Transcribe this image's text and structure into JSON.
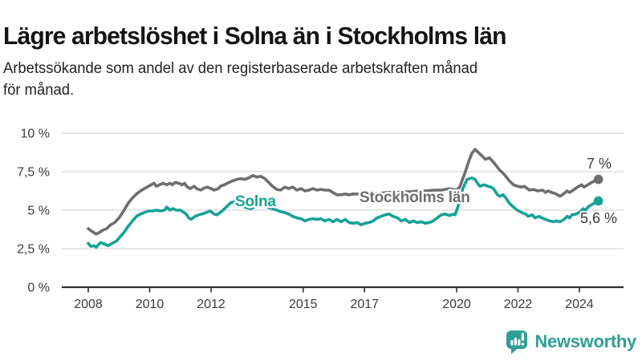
{
  "header": {
    "title": "Lägre arbetslöshet i Solna än i Stockholms län",
    "subtitle": "Arbetssökande som andel av den registerbaserade arbetskraften månad\nför månad."
  },
  "footer": {
    "brand": "Newsworthy"
  },
  "colors": {
    "solna_teal": "#16a296",
    "stockholm_gray": "#6e6e6e",
    "tick_text": "#3c3c3c",
    "grid": "#d9d9d9",
    "axis": "#2e2e2e",
    "brand_teal": "#2f9f97",
    "title_text": "#141414"
  },
  "chart_data": {
    "type": "line",
    "title": "Lägre arbetslöshet i Solna än i Stockholms län",
    "subtitle": "Arbetssökande som andel av den registerbaserade arbetskraften månad för månad.",
    "xlabel": "",
    "ylabel": "",
    "ylim": [
      0,
      10
    ],
    "xlim": [
      2007.3,
      2025.4
    ],
    "grid": "horizontal",
    "legend_position": "inline-labels",
    "y_ticks": [
      {
        "value": 10,
        "label": "10 %"
      },
      {
        "value": 7.5,
        "label": "7,5 %"
      },
      {
        "value": 5,
        "label": "5 %"
      },
      {
        "value": 2.5,
        "label": "2,5 %"
      },
      {
        "value": 0,
        "label": "0 %"
      }
    ],
    "x_ticks": [
      {
        "value": 2008,
        "label": "2008"
      },
      {
        "value": 2010,
        "label": "2010"
      },
      {
        "value": 2012,
        "label": "2012"
      },
      {
        "value": 2015,
        "label": "2015"
      },
      {
        "value": 2017,
        "label": "2017"
      },
      {
        "value": 2020,
        "label": "2020"
      },
      {
        "value": 2022,
        "label": "2022"
      },
      {
        "value": 2024,
        "label": "2024"
      }
    ],
    "series": [
      {
        "name": "Stockholms län",
        "color": "#6e6e6e",
        "end_label": "7 %",
        "end_value": 7.0,
        "points": [
          [
            2008.0,
            3.8
          ],
          [
            2008.1,
            3.65
          ],
          [
            2008.26,
            3.45
          ],
          [
            2008.4,
            3.6
          ],
          [
            2008.47,
            3.7
          ],
          [
            2008.6,
            3.8
          ],
          [
            2008.73,
            4.05
          ],
          [
            2008.86,
            4.2
          ],
          [
            2009.0,
            4.5
          ],
          [
            2009.12,
            4.85
          ],
          [
            2009.3,
            5.45
          ],
          [
            2009.44,
            5.8
          ],
          [
            2009.57,
            6.05
          ],
          [
            2009.7,
            6.25
          ],
          [
            2009.83,
            6.4
          ],
          [
            2009.96,
            6.55
          ],
          [
            2010.14,
            6.75
          ],
          [
            2010.22,
            6.55
          ],
          [
            2010.43,
            6.75
          ],
          [
            2010.56,
            6.65
          ],
          [
            2010.66,
            6.75
          ],
          [
            2010.75,
            6.65
          ],
          [
            2010.82,
            6.8
          ],
          [
            2010.95,
            6.75
          ],
          [
            2011.06,
            6.65
          ],
          [
            2011.14,
            6.75
          ],
          [
            2011.2,
            6.55
          ],
          [
            2011.32,
            6.4
          ],
          [
            2011.45,
            6.55
          ],
          [
            2011.53,
            6.4
          ],
          [
            2011.66,
            6.3
          ],
          [
            2011.74,
            6.4
          ],
          [
            2011.87,
            6.5
          ],
          [
            2012.0,
            6.4
          ],
          [
            2012.1,
            6.3
          ],
          [
            2012.24,
            6.4
          ],
          [
            2012.3,
            6.55
          ],
          [
            2012.44,
            6.65
          ],
          [
            2012.58,
            6.8
          ],
          [
            2012.7,
            6.9
          ],
          [
            2012.84,
            7.0
          ],
          [
            2012.97,
            7.05
          ],
          [
            2013.1,
            7.0
          ],
          [
            2013.23,
            7.1
          ],
          [
            2013.36,
            7.25
          ],
          [
            2013.49,
            7.15
          ],
          [
            2013.62,
            7.2
          ],
          [
            2013.75,
            7.05
          ],
          [
            2013.88,
            6.8
          ],
          [
            2014.0,
            6.55
          ],
          [
            2014.14,
            6.35
          ],
          [
            2014.27,
            6.3
          ],
          [
            2014.4,
            6.5
          ],
          [
            2014.53,
            6.4
          ],
          [
            2014.66,
            6.5
          ],
          [
            2014.8,
            6.3
          ],
          [
            2014.93,
            6.4
          ],
          [
            2015.06,
            6.25
          ],
          [
            2015.19,
            6.3
          ],
          [
            2015.32,
            6.4
          ],
          [
            2015.45,
            6.3
          ],
          [
            2015.58,
            6.35
          ],
          [
            2015.71,
            6.3
          ],
          [
            2015.84,
            6.3
          ],
          [
            2015.97,
            6.15
          ],
          [
            2016.1,
            6.0
          ],
          [
            2016.24,
            6.0
          ],
          [
            2016.37,
            6.05
          ],
          [
            2016.5,
            6.0
          ],
          [
            2016.63,
            6.05
          ],
          [
            2016.8,
            6.05
          ],
          [
            2017.0,
            6.05
          ],
          [
            2017.25,
            6.1
          ],
          [
            2017.5,
            6.1
          ],
          [
            2017.75,
            6.15
          ],
          [
            2018.0,
            6.15
          ],
          [
            2018.25,
            6.2
          ],
          [
            2018.5,
            6.2
          ],
          [
            2018.75,
            6.25
          ],
          [
            2019.0,
            6.25
          ],
          [
            2019.25,
            6.3
          ],
          [
            2019.5,
            6.3
          ],
          [
            2019.76,
            6.4
          ],
          [
            2019.9,
            6.35
          ],
          [
            2020.0,
            6.3
          ],
          [
            2020.1,
            6.5
          ],
          [
            2020.25,
            7.3
          ],
          [
            2020.4,
            8.2
          ],
          [
            2020.5,
            8.7
          ],
          [
            2020.6,
            8.95
          ],
          [
            2020.76,
            8.65
          ],
          [
            2020.94,
            8.3
          ],
          [
            2021.07,
            8.4
          ],
          [
            2021.25,
            8.0
          ],
          [
            2021.4,
            7.6
          ],
          [
            2021.54,
            7.35
          ],
          [
            2021.72,
            6.9
          ],
          [
            2021.85,
            6.65
          ],
          [
            2021.98,
            6.55
          ],
          [
            2022.12,
            6.5
          ],
          [
            2022.2,
            6.55
          ],
          [
            2022.38,
            6.3
          ],
          [
            2022.5,
            6.35
          ],
          [
            2022.64,
            6.25
          ],
          [
            2022.8,
            6.3
          ],
          [
            2022.9,
            6.15
          ],
          [
            2022.98,
            6.25
          ],
          [
            2023.1,
            6.15
          ],
          [
            2023.24,
            6.05
          ],
          [
            2023.37,
            5.9
          ],
          [
            2023.48,
            6.05
          ],
          [
            2023.6,
            6.25
          ],
          [
            2023.68,
            6.15
          ],
          [
            2023.8,
            6.3
          ],
          [
            2023.94,
            6.5
          ],
          [
            2024.07,
            6.65
          ],
          [
            2024.15,
            6.5
          ],
          [
            2024.28,
            6.65
          ],
          [
            2024.4,
            6.8
          ],
          [
            2024.54,
            6.95
          ],
          [
            2024.62,
            7.0
          ]
        ]
      },
      {
        "name": "Solna",
        "color": "#16a296",
        "end_label": "5,6 %",
        "end_value": 5.6,
        "points": [
          [
            2008.0,
            2.85
          ],
          [
            2008.08,
            2.65
          ],
          [
            2008.18,
            2.7
          ],
          [
            2008.26,
            2.6
          ],
          [
            2008.4,
            2.9
          ],
          [
            2008.47,
            2.85
          ],
          [
            2008.58,
            2.75
          ],
          [
            2008.65,
            2.7
          ],
          [
            2008.78,
            2.85
          ],
          [
            2008.92,
            3.0
          ],
          [
            2009.05,
            3.3
          ],
          [
            2009.18,
            3.6
          ],
          [
            2009.3,
            3.95
          ],
          [
            2009.44,
            4.3
          ],
          [
            2009.57,
            4.6
          ],
          [
            2009.7,
            4.75
          ],
          [
            2009.83,
            4.85
          ],
          [
            2009.96,
            4.95
          ],
          [
            2010.1,
            4.95
          ],
          [
            2010.22,
            5.0
          ],
          [
            2010.35,
            4.95
          ],
          [
            2010.48,
            5.0
          ],
          [
            2010.56,
            5.2
          ],
          [
            2010.66,
            5.0
          ],
          [
            2010.75,
            5.1
          ],
          [
            2010.88,
            5.0
          ],
          [
            2011.0,
            5.0
          ],
          [
            2011.08,
            4.9
          ],
          [
            2011.19,
            4.75
          ],
          [
            2011.27,
            4.5
          ],
          [
            2011.35,
            4.4
          ],
          [
            2011.48,
            4.6
          ],
          [
            2011.6,
            4.7
          ],
          [
            2011.71,
            4.75
          ],
          [
            2011.84,
            4.85
          ],
          [
            2011.97,
            4.95
          ],
          [
            2012.1,
            4.75
          ],
          [
            2012.18,
            4.7
          ],
          [
            2012.3,
            4.85
          ],
          [
            2012.39,
            5.0
          ],
          [
            2012.52,
            5.25
          ],
          [
            2012.65,
            5.5
          ],
          [
            2012.8,
            5.55
          ],
          [
            2012.95,
            5.4
          ],
          [
            2013.1,
            5.2
          ],
          [
            2013.3,
            5.1
          ],
          [
            2013.5,
            5.3
          ],
          [
            2013.7,
            5.3
          ],
          [
            2013.9,
            5.15
          ],
          [
            2014.0,
            5.1
          ],
          [
            2014.14,
            5.0
          ],
          [
            2014.27,
            4.9
          ],
          [
            2014.4,
            4.85
          ],
          [
            2014.53,
            4.75
          ],
          [
            2014.66,
            4.6
          ],
          [
            2014.8,
            4.5
          ],
          [
            2014.93,
            4.45
          ],
          [
            2015.06,
            4.3
          ],
          [
            2015.19,
            4.4
          ],
          [
            2015.32,
            4.45
          ],
          [
            2015.45,
            4.4
          ],
          [
            2015.58,
            4.45
          ],
          [
            2015.71,
            4.3
          ],
          [
            2015.84,
            4.4
          ],
          [
            2015.97,
            4.25
          ],
          [
            2016.1,
            4.4
          ],
          [
            2016.24,
            4.25
          ],
          [
            2016.37,
            4.4
          ],
          [
            2016.5,
            4.2
          ],
          [
            2016.63,
            4.15
          ],
          [
            2016.76,
            4.2
          ],
          [
            2016.89,
            4.05
          ],
          [
            2017.02,
            4.15
          ],
          [
            2017.15,
            4.2
          ],
          [
            2017.28,
            4.3
          ],
          [
            2017.41,
            4.5
          ],
          [
            2017.54,
            4.6
          ],
          [
            2017.67,
            4.7
          ],
          [
            2017.8,
            4.75
          ],
          [
            2017.93,
            4.6
          ],
          [
            2018.07,
            4.5
          ],
          [
            2018.2,
            4.3
          ],
          [
            2018.33,
            4.4
          ],
          [
            2018.46,
            4.2
          ],
          [
            2018.59,
            4.3
          ],
          [
            2018.72,
            4.2
          ],
          [
            2018.85,
            4.25
          ],
          [
            2018.98,
            4.15
          ],
          [
            2019.11,
            4.2
          ],
          [
            2019.24,
            4.3
          ],
          [
            2019.37,
            4.5
          ],
          [
            2019.5,
            4.7
          ],
          [
            2019.63,
            4.75
          ],
          [
            2019.76,
            4.65
          ],
          [
            2019.9,
            4.75
          ],
          [
            2019.95,
            4.7
          ],
          [
            2020.08,
            5.45
          ],
          [
            2020.2,
            6.4
          ],
          [
            2020.34,
            7.0
          ],
          [
            2020.5,
            7.1
          ],
          [
            2020.6,
            7.0
          ],
          [
            2020.68,
            6.75
          ],
          [
            2020.76,
            6.55
          ],
          [
            2020.9,
            6.65
          ],
          [
            2021.02,
            6.55
          ],
          [
            2021.12,
            6.5
          ],
          [
            2021.2,
            6.4
          ],
          [
            2021.33,
            6.0
          ],
          [
            2021.4,
            5.9
          ],
          [
            2021.52,
            6.0
          ],
          [
            2021.6,
            5.8
          ],
          [
            2021.72,
            5.45
          ],
          [
            2021.85,
            5.2
          ],
          [
            2021.98,
            5.0
          ],
          [
            2022.12,
            4.85
          ],
          [
            2022.25,
            4.75
          ],
          [
            2022.33,
            4.6
          ],
          [
            2022.46,
            4.7
          ],
          [
            2022.56,
            4.5
          ],
          [
            2022.69,
            4.6
          ],
          [
            2022.77,
            4.5
          ],
          [
            2022.9,
            4.4
          ],
          [
            2023.03,
            4.3
          ],
          [
            2023.16,
            4.25
          ],
          [
            2023.24,
            4.3
          ],
          [
            2023.37,
            4.25
          ],
          [
            2023.5,
            4.4
          ],
          [
            2023.6,
            4.6
          ],
          [
            2023.68,
            4.5
          ],
          [
            2023.76,
            4.7
          ],
          [
            2023.9,
            4.75
          ],
          [
            2024.03,
            4.9
          ],
          [
            2024.13,
            5.1
          ],
          [
            2024.21,
            5.0
          ],
          [
            2024.28,
            5.2
          ],
          [
            2024.39,
            5.35
          ],
          [
            2024.52,
            5.5
          ],
          [
            2024.62,
            5.6
          ]
        ]
      }
    ]
  }
}
